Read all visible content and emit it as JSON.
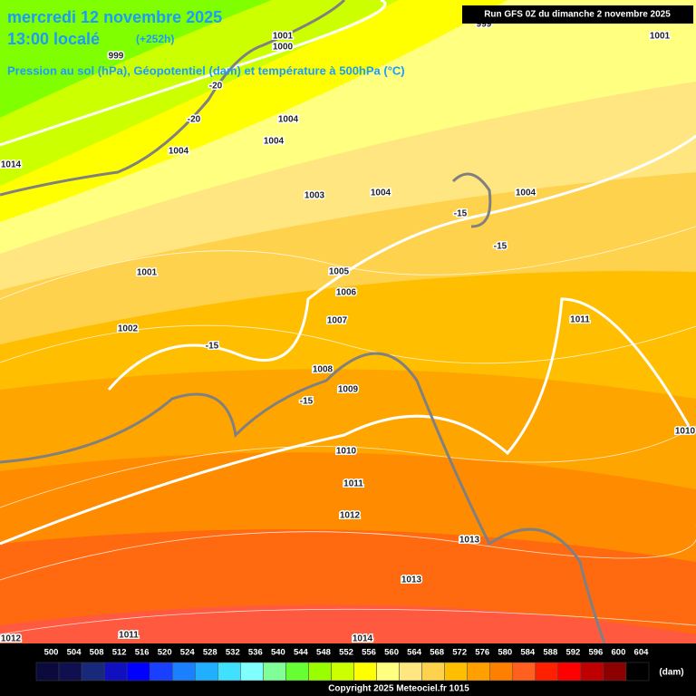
{
  "header": {
    "date": "mercredi 12 novembre 2025",
    "time": "13:00 localé",
    "lead": "(+252h)",
    "subtitle": "Pression au sol (hPa), Géopotentiel (dam) et température à 500hPa (°C)",
    "run": "Run GFS 0Z du dimanche 2 novembre 2025"
  },
  "map_labels": [
    999,
    1000,
    1001,
    1004,
    1004,
    1004,
    1003,
    1004,
    1004,
    1001,
    1002,
    1005,
    1006,
    1007,
    1011,
    1008,
    1009,
    1010,
    1011,
    1012,
    1013,
    1013,
    1010,
    1011,
    1014,
    1012,
    1014,
    999,
    1001,
    -20,
    -20,
    -15,
    -15,
    -15,
    -15
  ],
  "legend": {
    "unit": "(dam)",
    "values": [
      500,
      504,
      508,
      512,
      516,
      520,
      524,
      528,
      532,
      536,
      540,
      544,
      548,
      552,
      556,
      560,
      564,
      568,
      572,
      576,
      580,
      584,
      588,
      592,
      596,
      600,
      604
    ],
    "colors": [
      "#0a0a3c",
      "#101050",
      "#18287a",
      "#1010c0",
      "#0000ff",
      "#1a40ff",
      "#1a80ff",
      "#20b0ff",
      "#40e0ff",
      "#80ffff",
      "#80ff99",
      "#66ff33",
      "#99ff00",
      "#ccff00",
      "#ffff00",
      "#ffff80",
      "#ffe680",
      "#ffd24d",
      "#ffbf00",
      "#ffa000",
      "#ff8000",
      "#ff6020",
      "#ff2000",
      "#ff0000",
      "#c00000",
      "#8c0000",
      "#000000"
    ]
  },
  "footer": "Copyright 2025 Meteociel.fr 1015"
}
